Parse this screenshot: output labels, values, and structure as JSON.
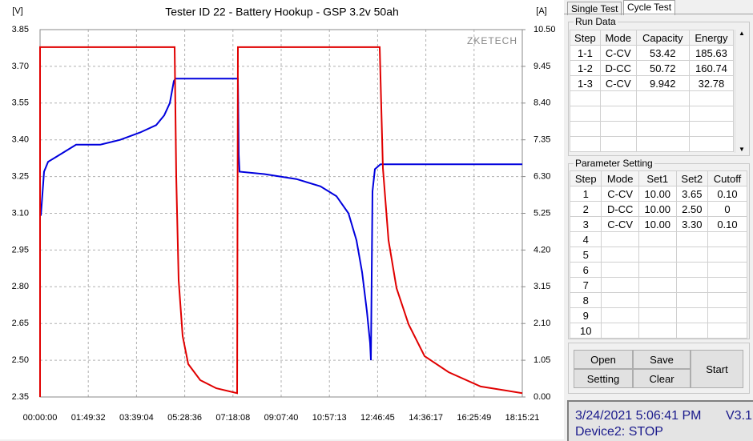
{
  "chart_data": {
    "type": "line",
    "title": "Tester ID 22 - Battery Hookup - GSP 3.2v 50ah",
    "y_label": "[V]",
    "y2_label": "[A]",
    "watermark": "ZKETECH",
    "grid": true,
    "xlim": [
      0,
      65721
    ],
    "xticks": [
      {
        "value": 0,
        "label": "00:00:00"
      },
      {
        "value": 6572,
        "label": "01:49:32"
      },
      {
        "value": 13144,
        "label": "03:39:04"
      },
      {
        "value": 19716,
        "label": "05:28:36"
      },
      {
        "value": 26288,
        "label": "07:18:08"
      },
      {
        "value": 32860,
        "label": "09:07:40"
      },
      {
        "value": 39433,
        "label": "10:57:13"
      },
      {
        "value": 46005,
        "label": "12:46:45"
      },
      {
        "value": 52577,
        "label": "14:36:17"
      },
      {
        "value": 59149,
        "label": "16:25:49"
      },
      {
        "value": 65721,
        "label": "18:15:21"
      }
    ],
    "ylim": [
      2.35,
      3.85
    ],
    "yticks": [
      2.35,
      {
        "value": 2.5,
        "label": "2.50"
      },
      2.65,
      {
        "value": 2.8,
        "label": "2.80"
      },
      2.95,
      {
        "value": 3.1,
        "label": "3.10"
      },
      3.25,
      {
        "value": 3.4,
        "label": "3.40"
      },
      3.55,
      {
        "value": 3.7,
        "label": "3.70"
      },
      3.85
    ],
    "y2lim": [
      0,
      10.5
    ],
    "y2ticks": [
      {
        "value": 0,
        "label": "0.00"
      },
      1.05,
      {
        "value": 2.1,
        "label": "2.10"
      },
      3.15,
      {
        "value": 4.2,
        "label": "4.20"
      },
      5.25,
      {
        "value": 6.3,
        "label": "6.30"
      },
      7.35,
      {
        "value": 8.4,
        "label": "8.40"
      },
      9.45,
      {
        "value": 10.5,
        "label": "10.50"
      }
    ],
    "series": [
      {
        "color": "#0000dd",
        "axis": "y",
        "x": [
          109,
          546,
          1092,
          2183,
          4913,
          8188,
          10917,
          13646,
          15830,
          16921,
          17686,
          18231,
          18450,
          26965,
          27074,
          27184,
          30568,
          34934,
          38210,
          40393,
          42031,
          43122,
          43886,
          44541,
          44978,
          45088,
          45306,
          45634,
          46398,
          65721
        ],
        "values": [
          3.09,
          3.27,
          3.31,
          3.33,
          3.38,
          3.38,
          3.4,
          3.43,
          3.46,
          3.5,
          3.55,
          3.64,
          3.65,
          3.65,
          3.34,
          3.27,
          3.26,
          3.24,
          3.21,
          3.17,
          3.1,
          2.99,
          2.86,
          2.7,
          2.57,
          2.5,
          3.19,
          3.28,
          3.3,
          3.3
        ]
      },
      {
        "color": "#e00000",
        "axis": "y2",
        "x": [
          0,
          0,
          18340,
          18559,
          18886,
          19432,
          20196,
          21834,
          24017,
          26856,
          26965,
          46289,
          46726,
          47490,
          48582,
          50220,
          52403,
          55678,
          60044,
          65721
        ],
        "values": [
          0,
          10.0,
          10.0,
          6.3,
          3.34,
          1.74,
          0.94,
          0.48,
          0.25,
          0.11,
          10.0,
          10.0,
          6.54,
          4.48,
          3.11,
          2.08,
          1.17,
          0.71,
          0.3,
          0.11
        ]
      }
    ]
  },
  "tabs": [
    "Single Test",
    "Cycle Test"
  ],
  "run_data": {
    "title": "Run Data",
    "columns": [
      "Step",
      "Mode",
      "Capacity",
      "Energy"
    ],
    "rows": [
      [
        "1-1",
        "C-CV",
        "53.42",
        "185.63"
      ],
      [
        "1-2",
        "D-CC",
        "50.72",
        "160.74"
      ],
      [
        "1-3",
        "C-CV",
        "9.942",
        "32.78"
      ]
    ]
  },
  "parameter_setting": {
    "title": "Parameter Setting",
    "columns": [
      "Step",
      "Mode",
      "Set1",
      "Set2",
      "Cutoff"
    ],
    "rows": [
      [
        "1",
        "C-CV",
        "10.00",
        "3.65",
        "0.10"
      ],
      [
        "2",
        "D-CC",
        "10.00",
        "2.50",
        "0"
      ],
      [
        "3",
        "C-CV",
        "10.00",
        "3.30",
        "0.10"
      ],
      [
        "4"
      ],
      [
        "5"
      ],
      [
        "6"
      ],
      [
        "7"
      ],
      [
        "8"
      ],
      [
        "9"
      ],
      [
        "10"
      ]
    ]
  },
  "buttons": [
    "Open",
    "Save",
    "Setting",
    "Clear",
    "Start"
  ],
  "status": {
    "datetime": "3/24/2021 5:06:41 PM",
    "version": "V3.1",
    "device": "Device2: STOP"
  }
}
